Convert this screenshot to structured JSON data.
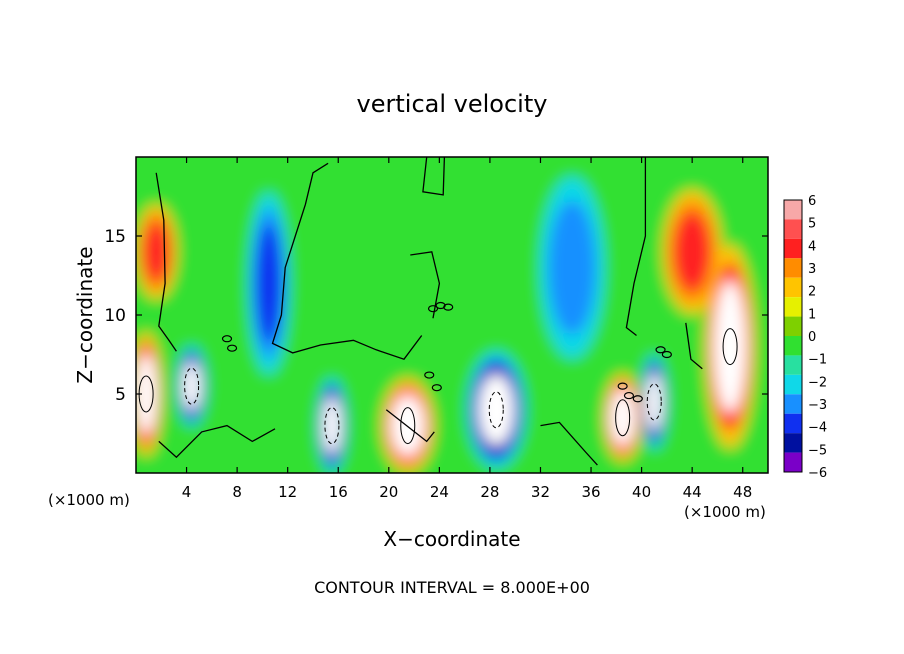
{
  "chart_data": {
    "type": "heatmap",
    "title": "vertical velocity",
    "xlabel": "X−coordinate",
    "ylabel": "Z−coordinate",
    "x_unit_left": "(×1000 m)",
    "x_unit_right": "(×1000 m)",
    "footer": "CONTOUR INTERVAL = 8.000E+00",
    "xlim": [
      0,
      50
    ],
    "ylim": [
      0,
      20
    ],
    "x_ticks": [
      "4",
      "8",
      "12",
      "16",
      "20",
      "24",
      "28",
      "32",
      "36",
      "40",
      "44",
      "48"
    ],
    "x_tick_values": [
      4,
      8,
      12,
      16,
      20,
      24,
      28,
      32,
      36,
      40,
      44,
      48
    ],
    "y_ticks": [
      "5",
      "10",
      "15"
    ],
    "y_tick_values": [
      5,
      10,
      15
    ],
    "colorbar": {
      "labels": [
        "6",
        "5",
        "4",
        "3",
        "2",
        "1",
        "0",
        "−1",
        "−2",
        "−3",
        "−4",
        "−5",
        "−6"
      ],
      "values": [
        6,
        5,
        4,
        3,
        2,
        1,
        0,
        -1,
        -2,
        -3,
        -4,
        -5,
        -6
      ],
      "colors": [
        "#f7a8a8",
        "#ff5050",
        "#ff2020",
        "#ff8c00",
        "#ffc400",
        "#e6f000",
        "#7ed000",
        "#30e030",
        "#28e0a0",
        "#10d8e8",
        "#1890ff",
        "#1030f0",
        "#0010a0",
        "#7a00c8"
      ]
    },
    "features": [
      {
        "x": 0.8,
        "z": 5,
        "value": 6,
        "desc": "strong updraft"
      },
      {
        "x": 1.6,
        "z": 14,
        "value": 4,
        "desc": "updraft aloft"
      },
      {
        "x": 4.4,
        "z": 5.5,
        "value": -6,
        "desc": "downdraft"
      },
      {
        "x": 10.5,
        "z": 12,
        "value": -4,
        "desc": "downdraft aloft"
      },
      {
        "x": 15.5,
        "z": 3,
        "value": -6,
        "desc": "downdraft"
      },
      {
        "x": 21.5,
        "z": 3,
        "value": 6,
        "desc": "strong updraft"
      },
      {
        "x": 28.5,
        "z": 4,
        "value": -6,
        "desc": "strong downdraft"
      },
      {
        "x": 34.5,
        "z": 13,
        "value": -3,
        "desc": "downdraft aloft"
      },
      {
        "x": 38.5,
        "z": 3.5,
        "value": 6,
        "desc": "updraft"
      },
      {
        "x": 41,
        "z": 4.5,
        "value": -6,
        "desc": "downdraft"
      },
      {
        "x": 44,
        "z": 14,
        "value": 4,
        "desc": "updraft aloft"
      },
      {
        "x": 47,
        "z": 8,
        "value": 6,
        "desc": "strong updraft"
      }
    ]
  }
}
